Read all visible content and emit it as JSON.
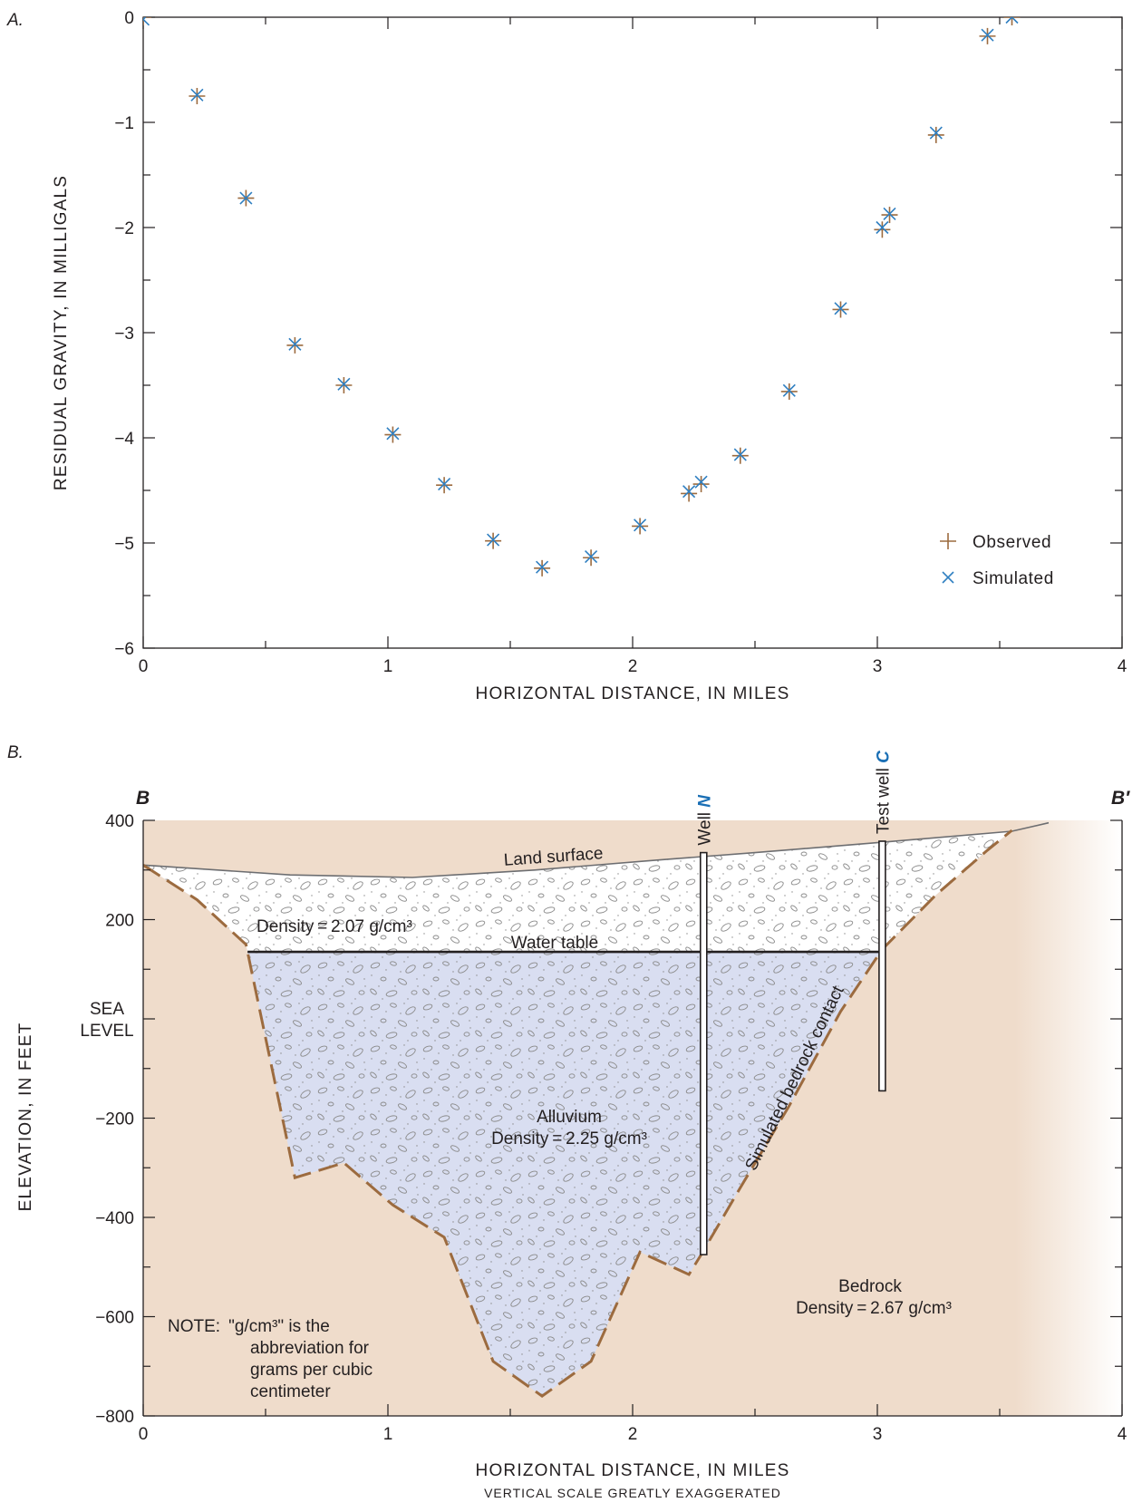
{
  "panel_a": {
    "label": "A.",
    "chart_data": {
      "type": "scatter",
      "xlabel": "HORIZONTAL DISTANCE, IN MILES",
      "ylabel": "RESIDUAL GRAVITY, IN MILLIGALS",
      "xlim": [
        0,
        4
      ],
      "ylim": [
        -6,
        0
      ],
      "xticks": [
        "0",
        "1",
        "2",
        "3",
        "4"
      ],
      "yticks": [
        "0",
        "−1",
        "−2",
        "−3",
        "−4",
        "−5",
        "−6"
      ],
      "legend_position": "bottom-right",
      "series": [
        {
          "name": "Observed",
          "marker": "plus",
          "color": "#9c6b3f",
          "x": [
            0.0,
            0.22,
            0.42,
            0.62,
            0.82,
            1.02,
            1.23,
            1.43,
            1.63,
            1.83,
            2.03,
            2.23,
            2.28,
            2.44,
            2.64,
            2.85,
            3.02,
            3.05,
            3.24,
            3.45,
            3.55
          ],
          "y": [
            0.0,
            -0.75,
            -1.72,
            -3.12,
            -3.5,
            -3.97,
            -4.45,
            -4.98,
            -5.24,
            -5.14,
            -4.84,
            -4.53,
            -4.44,
            -4.17,
            -3.56,
            -2.78,
            -2.02,
            -1.88,
            -1.12,
            -0.18,
            0.0
          ]
        },
        {
          "name": "Simulated",
          "marker": "x",
          "color": "#2f7fc1",
          "x": [
            0.0,
            0.22,
            0.42,
            0.62,
            0.82,
            1.02,
            1.23,
            1.43,
            1.63,
            1.83,
            2.03,
            2.23,
            2.28,
            2.44,
            2.64,
            2.85,
            3.02,
            3.05,
            3.24,
            3.45,
            3.55
          ],
          "y": [
            -0.02,
            -0.74,
            -1.72,
            -3.11,
            -3.49,
            -3.96,
            -4.44,
            -4.97,
            -5.23,
            -5.13,
            -4.83,
            -4.51,
            -4.42,
            -4.16,
            -3.55,
            -2.77,
            -2.0,
            -1.87,
            -1.1,
            -0.17,
            0.0
          ]
        }
      ]
    }
  },
  "panel_b": {
    "label": "B.",
    "section_start": "B",
    "section_end": "B′",
    "chart_data": {
      "type": "area",
      "xlabel": "HORIZONTAL DISTANCE, IN MILES",
      "ylabel": "ELEVATION, IN FEET",
      "xlim": [
        0,
        4
      ],
      "ylim": [
        -800,
        400
      ],
      "xticks": [
        "0",
        "1",
        "2",
        "3",
        "4"
      ],
      "yticks": [
        "400",
        "200",
        "SEA LEVEL",
        "−200",
        "−400",
        "−600",
        "−800"
      ],
      "ytick_values": [
        400,
        200,
        0,
        -200,
        -400,
        -600,
        -800
      ],
      "land_surface": {
        "x": [
          0.0,
          0.6,
          1.1,
          1.6,
          2.1,
          2.5,
          3.0,
          3.55,
          3.7
        ],
        "y": [
          310,
          290,
          285,
          300,
          320,
          335,
          355,
          378,
          395
        ]
      },
      "bedrock_contact": {
        "x": [
          0.0,
          0.22,
          0.42,
          0.62,
          0.82,
          1.02,
          1.23,
          1.43,
          1.63,
          1.83,
          2.03,
          2.23,
          2.28,
          2.44,
          2.64,
          2.85,
          3.02,
          3.05,
          3.24,
          3.45,
          3.55
        ],
        "y": [
          310,
          240,
          150,
          -320,
          -290,
          -375,
          -440,
          -690,
          -760,
          -690,
          -470,
          -515,
          -475,
          -340,
          -175,
          15,
          140,
          155,
          250,
          340,
          380
        ]
      },
      "water_table_elevation": 135,
      "labels": {
        "land_surface": "Land surface",
        "water_table": "Water table",
        "contact": "Simulated bedrock contact",
        "upper_density": "Density = 2.07 g/cm³",
        "alluvium_name": "Alluvium",
        "alluvium_density": "Density = 2.25 g/cm³",
        "bedrock_name": "Bedrock",
        "bedrock_density": "Density = 2.67 g/cm³",
        "note": [
          "NOTE:  \"g/cm³\" is the",
          "abbreviation for",
          "grams per cubic",
          "centimeter"
        ],
        "scale_note": "VERTICAL SCALE GREATLY EXAGGERATED"
      },
      "wells": [
        {
          "name_prefix": "Well ",
          "name_suffix": "N",
          "x": 2.29,
          "top": 335,
          "bottom": -475
        },
        {
          "name_prefix": "Test well ",
          "name_suffix": "C",
          "x": 3.02,
          "top": 358,
          "bottom": -145
        }
      ],
      "colors": {
        "bedrock": "#efdccb",
        "alluvium": "#d9def1",
        "contact": "#9c6b3f",
        "well_label": "#1a6fb5"
      }
    }
  }
}
